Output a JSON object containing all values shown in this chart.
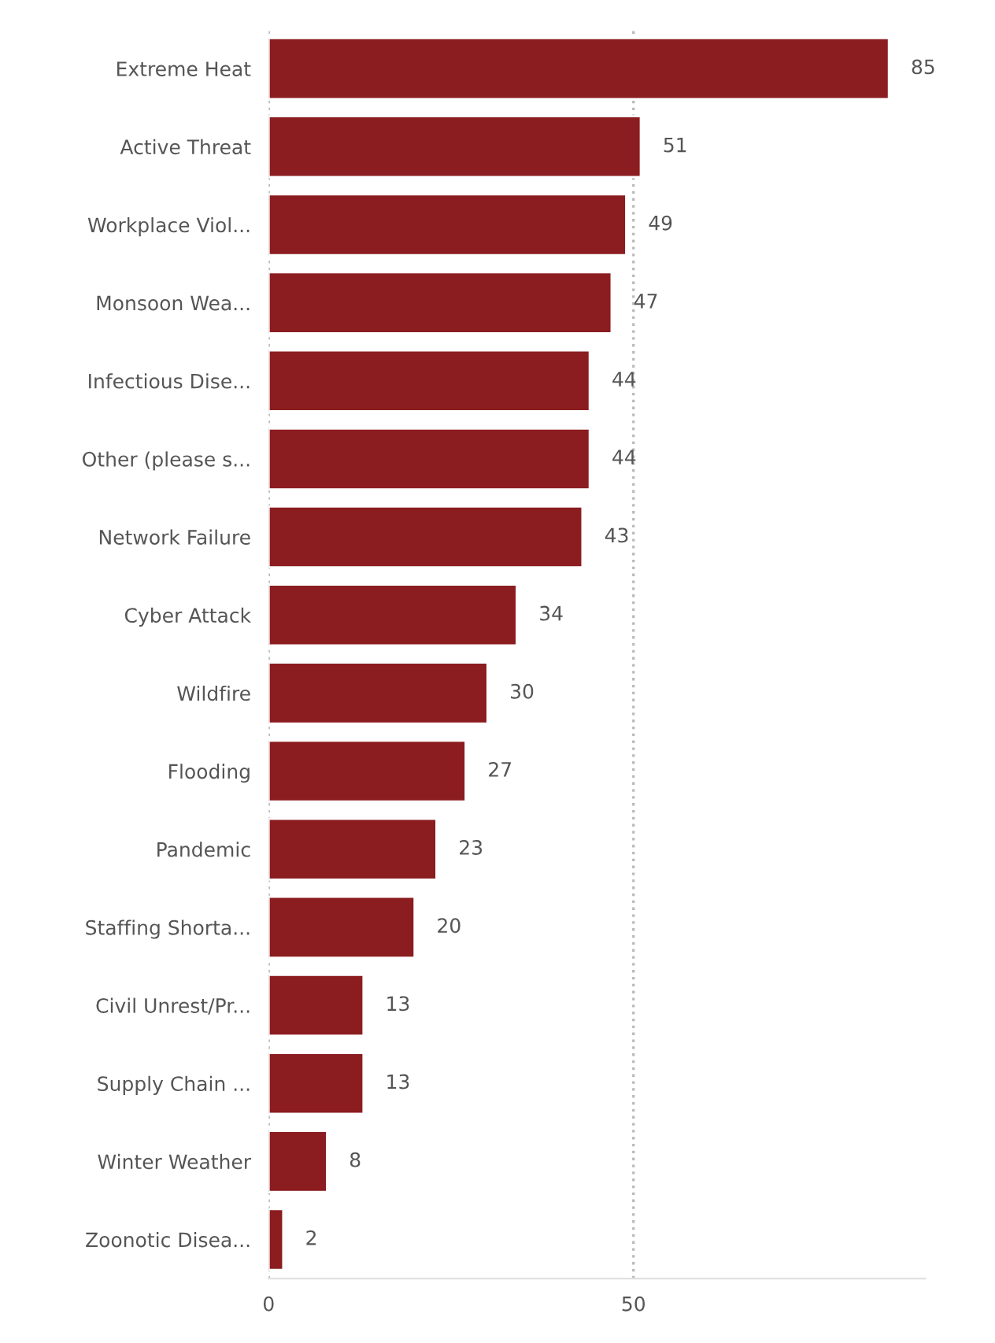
{
  "chart_data": {
    "type": "bar",
    "orientation": "horizontal",
    "categories": [
      "Extreme Heat",
      "Active Threat",
      "Workplace Viol...",
      "Monsoon Wea...",
      "Infectious Dise...",
      "Other (please s...",
      "Network Failure",
      "Cyber Attack",
      "Wildfire",
      "Flooding",
      "Pandemic",
      "Staffing Shorta...",
      "Civil Unrest/Pr...",
      "Supply Chain ...",
      "Winter Weather",
      "Zoonotic Disea..."
    ],
    "values": [
      85,
      51,
      49,
      47,
      44,
      44,
      43,
      34,
      30,
      27,
      23,
      20,
      13,
      13,
      8,
      2
    ],
    "color": "#8b1c1f",
    "xlim": [
      0,
      90
    ],
    "xticks": [
      0,
      50
    ],
    "grid": "x",
    "data_labels": true
  }
}
